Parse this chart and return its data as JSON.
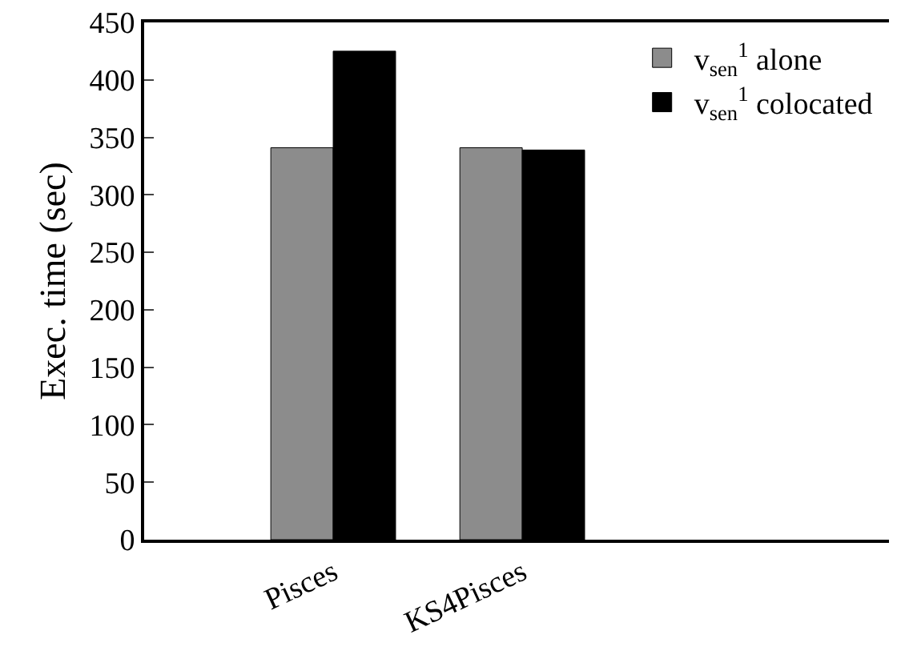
{
  "chart_data": {
    "type": "bar",
    "ylabel": "Exec. time (sec)",
    "categories": [
      "Pisces",
      "KS4Pisces"
    ],
    "series": [
      {
        "name": "v$_{sen}$$^{1}$ alone",
        "color": "#8c8c8c",
        "values": [
          341,
          341
        ]
      },
      {
        "name": "v$_{sen}$$^{1}$ colocated",
        "color": "#000000",
        "values": [
          425,
          339
        ]
      }
    ],
    "ylim": [
      0,
      450
    ],
    "yticks": [
      0,
      50,
      100,
      150,
      200,
      250,
      300,
      350,
      400,
      450
    ],
    "legend": "top right"
  }
}
